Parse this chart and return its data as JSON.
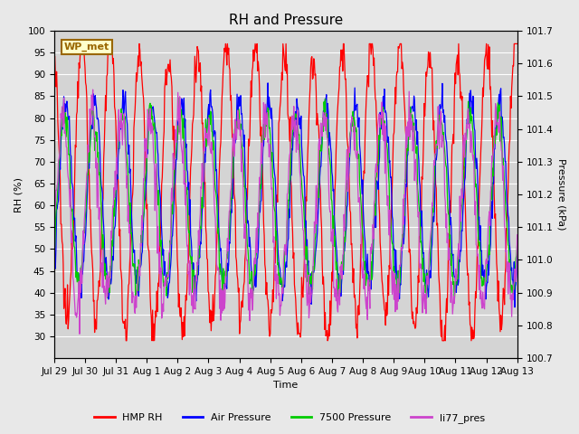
{
  "title": "RH and Pressure",
  "xlabel": "Time",
  "ylabel_left": "RH (%)",
  "ylabel_right": "Pressure (kPa)",
  "ylim_left": [
    25,
    100
  ],
  "ylim_right": [
    100.7,
    101.7
  ],
  "yticks_left": [
    30,
    35,
    40,
    45,
    50,
    55,
    60,
    65,
    70,
    75,
    80,
    85,
    90,
    95,
    100
  ],
  "yticks_right": [
    100.7,
    100.8,
    100.9,
    101.0,
    101.1,
    101.2,
    101.3,
    101.4,
    101.5,
    101.6,
    101.7
  ],
  "xtick_labels": [
    "Jul 29",
    "Jul 30",
    "Jul 31",
    "Aug 1",
    "Aug 2",
    "Aug 3",
    "Aug 4",
    "Aug 5",
    "Aug 6",
    "Aug 7",
    "Aug 8",
    "Aug 9",
    "Aug 10",
    "Aug 11",
    "Aug 12",
    "Aug 13"
  ],
  "n_days": 16,
  "colors": {
    "HMP_RH": "#ff0000",
    "Air_Pressure": "#0000ff",
    "Pressure_7500": "#00cc00",
    "li77_pres": "#cc44cc"
  },
  "legend_labels": [
    "HMP RH",
    "Air Pressure",
    "7500 Pressure",
    "li77_pres"
  ],
  "annotation_text": "WP_met",
  "annotation_fg": "#996600",
  "annotation_bg": "#ffffcc",
  "fig_bg_color": "#e8e8e8",
  "plot_bg_color": "#d4d4d4",
  "grid_color": "#ffffff",
  "title_fontsize": 11,
  "label_fontsize": 8,
  "tick_fontsize": 7.5
}
